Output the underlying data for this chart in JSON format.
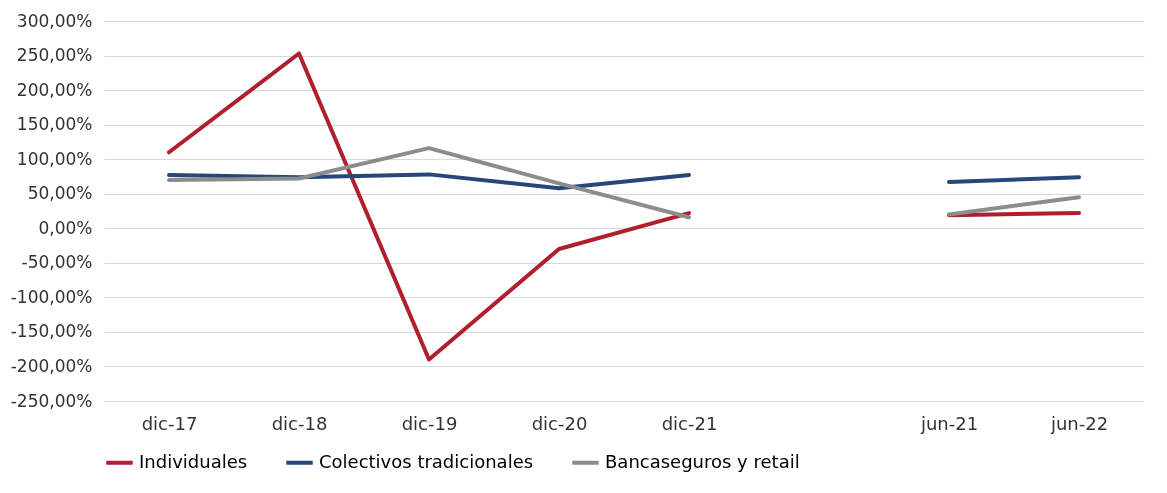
{
  "chart_data": {
    "type": "line",
    "categories": [
      "dic-17",
      "dic-18",
      "dic-19",
      "dic-20",
      "dic-21",
      null,
      "jun-21",
      "jun-22"
    ],
    "series": [
      {
        "name": "Individuales",
        "color": "#b01f2e",
        "values": [
          110,
          253,
          -190,
          -30,
          22,
          null,
          19,
          22
        ]
      },
      {
        "name": "Colectivos tradicionales",
        "color": "#27477a",
        "values": [
          77,
          74,
          78,
          58,
          77,
          null,
          67,
          74
        ]
      },
      {
        "name": "Bancaseguros y retail",
        "color": "#8c8c8c",
        "values": [
          70,
          72,
          116,
          65,
          16,
          null,
          20,
          45
        ]
      }
    ],
    "ylim": [
      -250,
      300
    ],
    "yticks": [
      {
        "value": -250,
        "label": "-250,00%"
      },
      {
        "value": -200,
        "label": "-200,00%"
      },
      {
        "value": -150,
        "label": "-150,00%"
      },
      {
        "value": -100,
        "label": "-100,00%"
      },
      {
        "value": -50,
        "label": "-50,00%"
      },
      {
        "value": 0,
        "label": "0,00%"
      },
      {
        "value": 50,
        "label": "50,00%"
      },
      {
        "value": 100,
        "label": "100,00%"
      },
      {
        "value": 150,
        "label": "150,00%"
      },
      {
        "value": 200,
        "label": "200,00%"
      },
      {
        "value": 250,
        "label": "250,00%"
      },
      {
        "value": 300,
        "label": "300,00%"
      }
    ],
    "grid": "y",
    "legend": "bottom",
    "marker": "none",
    "line_style": "solid"
  }
}
